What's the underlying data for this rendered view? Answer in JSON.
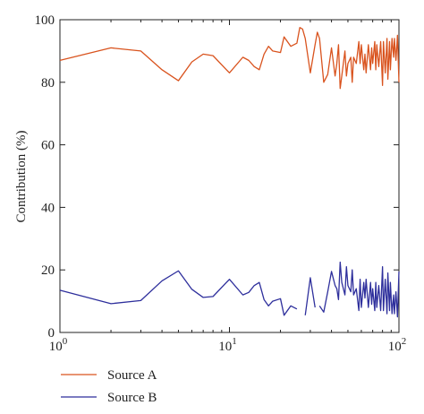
{
  "chart_data": {
    "type": "line",
    "xscale": "log",
    "xlim": [
      1,
      100
    ],
    "ylim": [
      0,
      100
    ],
    "ylabel": "Contribution (%)",
    "xlabel": "",
    "grid": false,
    "legend_position": "bottom-left, below plot",
    "x_ticks": [
      {
        "base": "10",
        "exp": "0"
      },
      {
        "base": "10",
        "exp": "1"
      },
      {
        "base": "10",
        "exp": "2"
      }
    ],
    "y_ticks": [
      "0",
      "20",
      "40",
      "60",
      "80",
      "100"
    ],
    "series": [
      {
        "name": "Source A",
        "color": "#d9531e",
        "points": [
          [
            1,
            87
          ],
          [
            2,
            91
          ],
          [
            3,
            90
          ],
          [
            4,
            84
          ],
          [
            5,
            80.5
          ],
          [
            6,
            86.5
          ],
          [
            7,
            89
          ],
          [
            8,
            88.5
          ],
          [
            10,
            83
          ],
          [
            12,
            88
          ],
          [
            13,
            87
          ],
          [
            14,
            85
          ],
          [
            15,
            84
          ],
          [
            16,
            89
          ],
          [
            17,
            91.5
          ],
          [
            18,
            90
          ],
          [
            20,
            89.5
          ],
          [
            21,
            94.5
          ],
          [
            23,
            91.5
          ],
          [
            25,
            92.5
          ],
          [
            26,
            97.5
          ],
          [
            27,
            97
          ],
          [
            28,
            94
          ],
          [
            30,
            83
          ],
          [
            32,
            92
          ],
          [
            33,
            96
          ],
          [
            34,
            94
          ],
          [
            36,
            80
          ],
          [
            38,
            82.5
          ],
          [
            40,
            91
          ],
          [
            42,
            82
          ],
          [
            43,
            86
          ],
          [
            44,
            92
          ],
          [
            45,
            78
          ],
          [
            46,
            82
          ],
          [
            48,
            90
          ],
          [
            49,
            82
          ],
          [
            50,
            86
          ],
          [
            52,
            88
          ],
          [
            53,
            80
          ],
          [
            54,
            88
          ],
          [
            56,
            86
          ],
          [
            58,
            93
          ],
          [
            59,
            86
          ],
          [
            60,
            92
          ],
          [
            62,
            84
          ],
          [
            63,
            89
          ],
          [
            64,
            83
          ],
          [
            66,
            92
          ],
          [
            68,
            84
          ],
          [
            69,
            91
          ],
          [
            70,
            86
          ],
          [
            72,
            93
          ],
          [
            73,
            84
          ],
          [
            74,
            92
          ],
          [
            76,
            85
          ],
          [
            78,
            93
          ],
          [
            80,
            79
          ],
          [
            81,
            93
          ],
          [
            83,
            83
          ],
          [
            85,
            94
          ],
          [
            86,
            81
          ],
          [
            88,
            93
          ],
          [
            89,
            84
          ],
          [
            91,
            94
          ],
          [
            93,
            88
          ],
          [
            94,
            94
          ],
          [
            96,
            87
          ],
          [
            98,
            95
          ],
          [
            100,
            80
          ]
        ]
      },
      {
        "name": "Source B",
        "color": "#2e2f9c",
        "points": [
          [
            1,
            13.5
          ],
          [
            2,
            9.2
          ],
          [
            3,
            10.2
          ],
          [
            4,
            16.5
          ],
          [
            5,
            19.7
          ],
          [
            6,
            13.8
          ],
          [
            7,
            11.2
          ],
          [
            8,
            11.5
          ],
          [
            10,
            17
          ],
          [
            12,
            12
          ],
          [
            13,
            12.8
          ],
          [
            14,
            15
          ],
          [
            15,
            16
          ],
          [
            16,
            10.5
          ],
          [
            17,
            8.5
          ],
          [
            18,
            10
          ],
          [
            20,
            10.8
          ],
          [
            21,
            5.5
          ],
          [
            23,
            8.5
          ],
          [
            25,
            7.5
          ],
          null,
          [
            28,
            5.5
          ],
          [
            30,
            17.5
          ],
          [
            32,
            8
          ],
          null,
          [
            34,
            8.5
          ],
          [
            36,
            6.5
          ],
          [
            38,
            13
          ],
          [
            40,
            19.5
          ],
          [
            42,
            15
          ],
          [
            43,
            14
          ],
          [
            44,
            10.5
          ],
          [
            45,
            22.5
          ],
          [
            46,
            16
          ],
          [
            48,
            12
          ],
          [
            49,
            21
          ],
          [
            50,
            15
          ],
          [
            52,
            13
          ],
          [
            53,
            20
          ],
          [
            54,
            12
          ],
          [
            56,
            14
          ],
          [
            58,
            7
          ],
          [
            59,
            17
          ],
          [
            60,
            8
          ],
          [
            62,
            16
          ],
          [
            63,
            11
          ],
          [
            64,
            17
          ],
          [
            66,
            8
          ],
          [
            68,
            16
          ],
          [
            69,
            9
          ],
          [
            70,
            14
          ],
          [
            72,
            7
          ],
          [
            73,
            16
          ],
          [
            74,
            8
          ],
          [
            76,
            15
          ],
          [
            78,
            7
          ],
          [
            80,
            21
          ],
          [
            81,
            7
          ],
          [
            83,
            17
          ],
          [
            85,
            6
          ],
          [
            86,
            19
          ],
          [
            88,
            7
          ],
          [
            89,
            16
          ],
          [
            91,
            6
          ],
          [
            93,
            12
          ],
          [
            94,
            6
          ],
          [
            96,
            13
          ],
          [
            98,
            5
          ],
          [
            100,
            19.5
          ]
        ]
      }
    ]
  }
}
